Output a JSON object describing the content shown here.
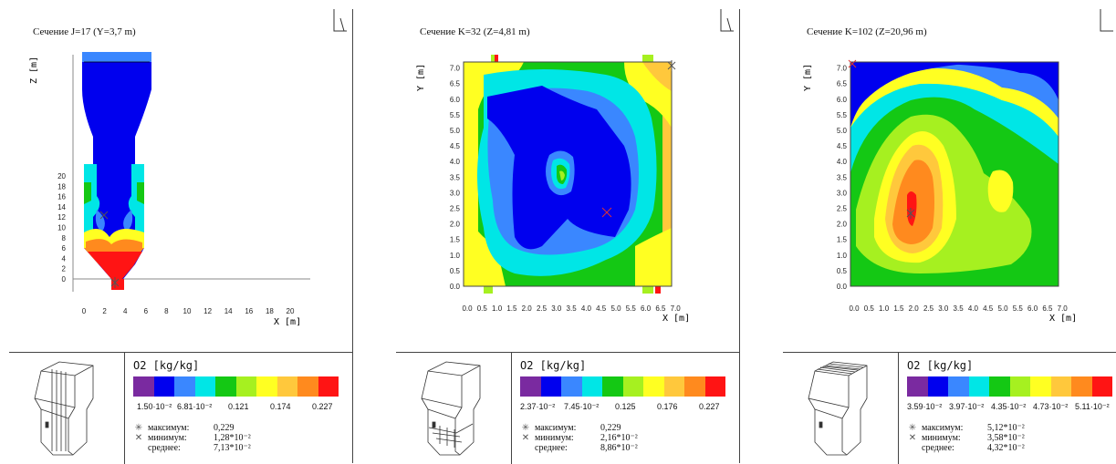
{
  "colors": [
    "#7a2aa0",
    "#0000ee",
    "#3a87ff",
    "#00e6e6",
    "#14c814",
    "#a6f020",
    "#ffff22",
    "#ffc83c",
    "#ff8a1e",
    "#ff1414"
  ],
  "panels": [
    {
      "title": "Сечение J=17 (Y=3,7 m)",
      "y_axis_label": "Z [m]",
      "x_axis_label": "X [m]",
      "y_ticks": [
        "0",
        "2",
        "4",
        "6",
        "8",
        "10",
        "12",
        "14",
        "16",
        "18",
        "20"
      ],
      "x_ticks": [
        "0",
        "2",
        "4",
        "6",
        "8",
        "10",
        "12",
        "14",
        "16",
        "18",
        "20"
      ],
      "quantity": "O2 [kg/kg]",
      "legend_ticks": [
        "1.50·10⁻²",
        "6.81·10⁻²",
        "0.121",
        "0.174",
        "0.227"
      ],
      "stats": {
        "max_label": "максимум:",
        "max": "0,229",
        "min_label": "минимум:",
        "min": "1,28*10⁻²",
        "avg_label": "среднее:",
        "avg": "7,13*10⁻²"
      }
    },
    {
      "title": "Сечение K=32 (Z=4,81 m)",
      "y_axis_label": "Y [m]",
      "x_axis_label": "X [m]",
      "y_ticks": [
        "0.0",
        "0.5",
        "1.0",
        "1.5",
        "2.0",
        "2.5",
        "3.0",
        "3.5",
        "4.0",
        "4.5",
        "5.0",
        "5.5",
        "6.0",
        "6.5",
        "7.0"
      ],
      "x_ticks": [
        "0.0",
        "0.5",
        "1.0",
        "1.5",
        "2.0",
        "2.5",
        "3.0",
        "3.5",
        "4.0",
        "4.5",
        "5.0",
        "5.5",
        "6.0",
        "6.5",
        "7.0"
      ],
      "quantity": "O2 [kg/kg]",
      "legend_ticks": [
        "2.37·10⁻²",
        "7.45·10⁻²",
        "0.125",
        "0.176",
        "0.227"
      ],
      "stats": {
        "max_label": "максимум:",
        "max": "0,229",
        "min_label": "минимум:",
        "min": "2,16*10⁻²",
        "avg_label": "среднее:",
        "avg": "8,86*10⁻²"
      }
    },
    {
      "title": "Сечение K=102 (Z=20,96 m)",
      "y_axis_label": "Y [m]",
      "x_axis_label": "X [m]",
      "y_ticks": [
        "0.0",
        "0.5",
        "1.0",
        "1.5",
        "2.0",
        "2.5",
        "3.0",
        "3.5",
        "4.0",
        "4.5",
        "5.0",
        "5.5",
        "6.0",
        "6.5",
        "7.0"
      ],
      "x_ticks": [
        "0.0",
        "0.5",
        "1.0",
        "1.5",
        "2.0",
        "2.5",
        "3.0",
        "3.5",
        "4.0",
        "4.5",
        "5.0",
        "5.5",
        "6.0",
        "6.5",
        "7.0"
      ],
      "quantity": "O2 [kg/kg]",
      "legend_ticks": [
        "3.59·10⁻²",
        "3.97·10⁻²",
        "4.35·10⁻²",
        "4.73·10⁻²",
        "5.11·10⁻²"
      ],
      "stats": {
        "max_label": "максимум:",
        "max": "5,12*10⁻²",
        "min_label": "минимум:",
        "min": "3,58*10⁻²",
        "avg_label": "среднее:",
        "avg": "4,32*10⁻²"
      }
    }
  ],
  "chart_data": [
    {
      "type": "heatmap",
      "title": "Сечение J=17 (Y=3,7 m)",
      "xlabel": "X [m]",
      "ylabel": "Z [m]",
      "xlim": [
        0,
        20
      ],
      "ylim": [
        0,
        21
      ],
      "legend_title": "O2 [kg/kg]",
      "colorbar_ticks": [
        0.015,
        0.0681,
        0.121,
        0.174,
        0.227
      ],
      "max": 0.229,
      "min": 0.0128,
      "mean": 0.0713
    },
    {
      "type": "heatmap",
      "title": "Сечение K=32 (Z=4,81 m)",
      "xlabel": "X [m]",
      "ylabel": "Y [m]",
      "xlim": [
        0,
        7
      ],
      "ylim": [
        0,
        7
      ],
      "legend_title": "O2 [kg/kg]",
      "colorbar_ticks": [
        0.0237,
        0.0745,
        0.125,
        0.176,
        0.227
      ],
      "max": 0.229,
      "min": 0.0216,
      "mean": 0.0886
    },
    {
      "type": "heatmap",
      "title": "Сечение K=102 (Z=20,96 m)",
      "xlabel": "X [m]",
      "ylabel": "Y [m]",
      "xlim": [
        0,
        7
      ],
      "ylim": [
        0,
        7
      ],
      "legend_title": "O2 [kg/kg]",
      "colorbar_ticks": [
        0.0359,
        0.0397,
        0.0435,
        0.0473,
        0.0511
      ],
      "max": 0.0512,
      "min": 0.0358,
      "mean": 0.0432
    }
  ]
}
